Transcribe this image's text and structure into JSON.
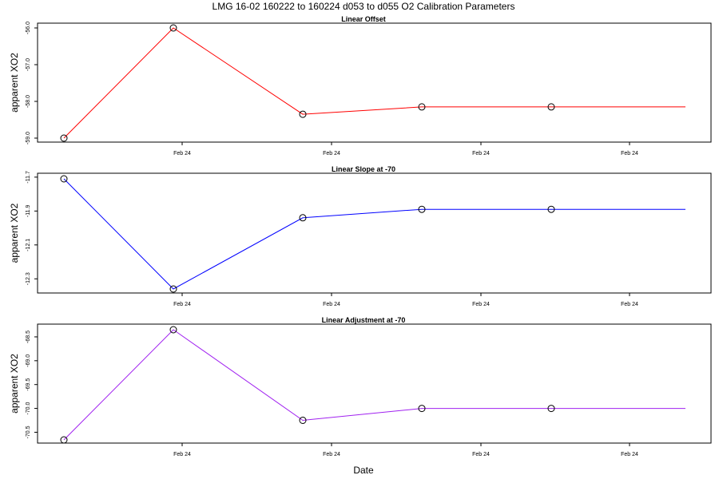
{
  "title": "LMG   16-02    160222 to 160224    d053 to d055   O2 Calibration Parameters",
  "xlabel": "Date",
  "x_tick_labels": [
    "Feb 24",
    "Feb 24",
    "Feb 24",
    "Feb 24",
    "Feb 24"
  ],
  "chart_data": [
    {
      "type": "line",
      "title": "Linear Offset",
      "ylabel": "apparent XO2",
      "color": "#ff0000",
      "x_index": [
        0,
        1,
        2,
        3,
        4,
        5
      ],
      "y_tick_labels": [
        "-56.0",
        "-57.0",
        "-58.0",
        "-59.0"
      ],
      "yticks": [
        -56.0,
        -57.0,
        -58.0,
        -59.0
      ],
      "ylim": [
        -59.1,
        -55.85
      ],
      "y_reversed": true,
      "values": [
        -59.0,
        -56.0,
        -58.35,
        -58.15,
        -58.15,
        -58.15
      ],
      "markers": [
        0,
        1,
        2,
        3,
        4
      ]
    },
    {
      "type": "line",
      "title": "Linear Slope at -70",
      "ylabel": "apparent XO2",
      "color": "#0000ff",
      "x_index": [
        0,
        1,
        2,
        3,
        4,
        5
      ],
      "y_tick_labels": [
        "-11.7",
        "-11.9",
        "-12.1",
        "-12.3"
      ],
      "yticks": [
        -11.7,
        -11.9,
        -12.1,
        -12.3
      ],
      "ylim": [
        -12.38,
        -11.68
      ],
      "y_reversed": true,
      "values": [
        -11.71,
        -12.36,
        -11.94,
        -11.89,
        -11.89,
        -11.89
      ],
      "markers": [
        0,
        1,
        2,
        3,
        4
      ]
    },
    {
      "type": "line",
      "title": "Linear Adjustment at -70",
      "ylabel": "apparent XO2",
      "color": "#a020f0",
      "x_index": [
        0,
        1,
        2,
        3,
        4,
        5
      ],
      "y_tick_labels": [
        "-68.5",
        "-69.0",
        "-69.5",
        "-70.0",
        "-70.5"
      ],
      "yticks": [
        -68.5,
        -69.0,
        -69.5,
        -70.0,
        -70.5
      ],
      "ylim": [
        -70.72,
        -68.26
      ],
      "y_reversed": false,
      "values": [
        -70.66,
        -68.35,
        -70.25,
        -70.0,
        -70.0,
        -70.0
      ],
      "markers": [
        0,
        1,
        2,
        3,
        4
      ]
    }
  ]
}
